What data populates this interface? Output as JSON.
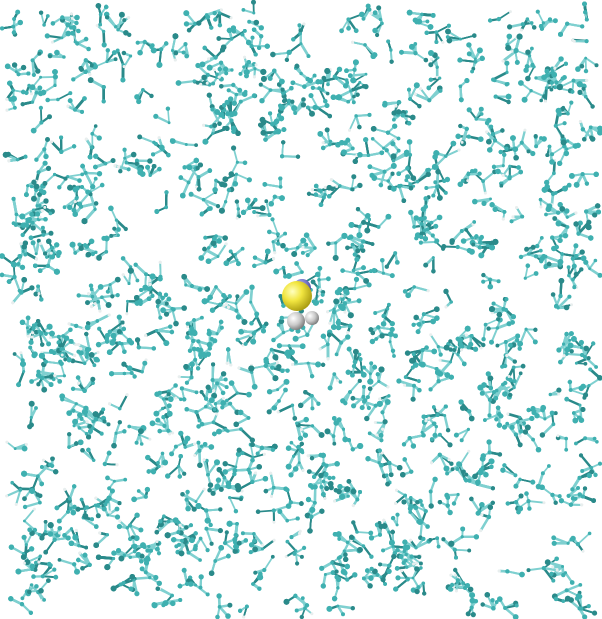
{
  "scene": {
    "description_kind": "molecular-dynamics-render",
    "background_color": "#ffffff",
    "solvent": {
      "representation": "ball-and-stick",
      "atom_color": "#3fb0b0",
      "bond_color": "#7fd0d0",
      "hydrogen_color": "#e8eeee",
      "dark_atom_color": "#2a8a8a"
    },
    "solute": {
      "representation": "vdw-spheres",
      "colors": [
        "#f2e640",
        "#c9c9c9",
        "#6a6ac0"
      ]
    }
  }
}
